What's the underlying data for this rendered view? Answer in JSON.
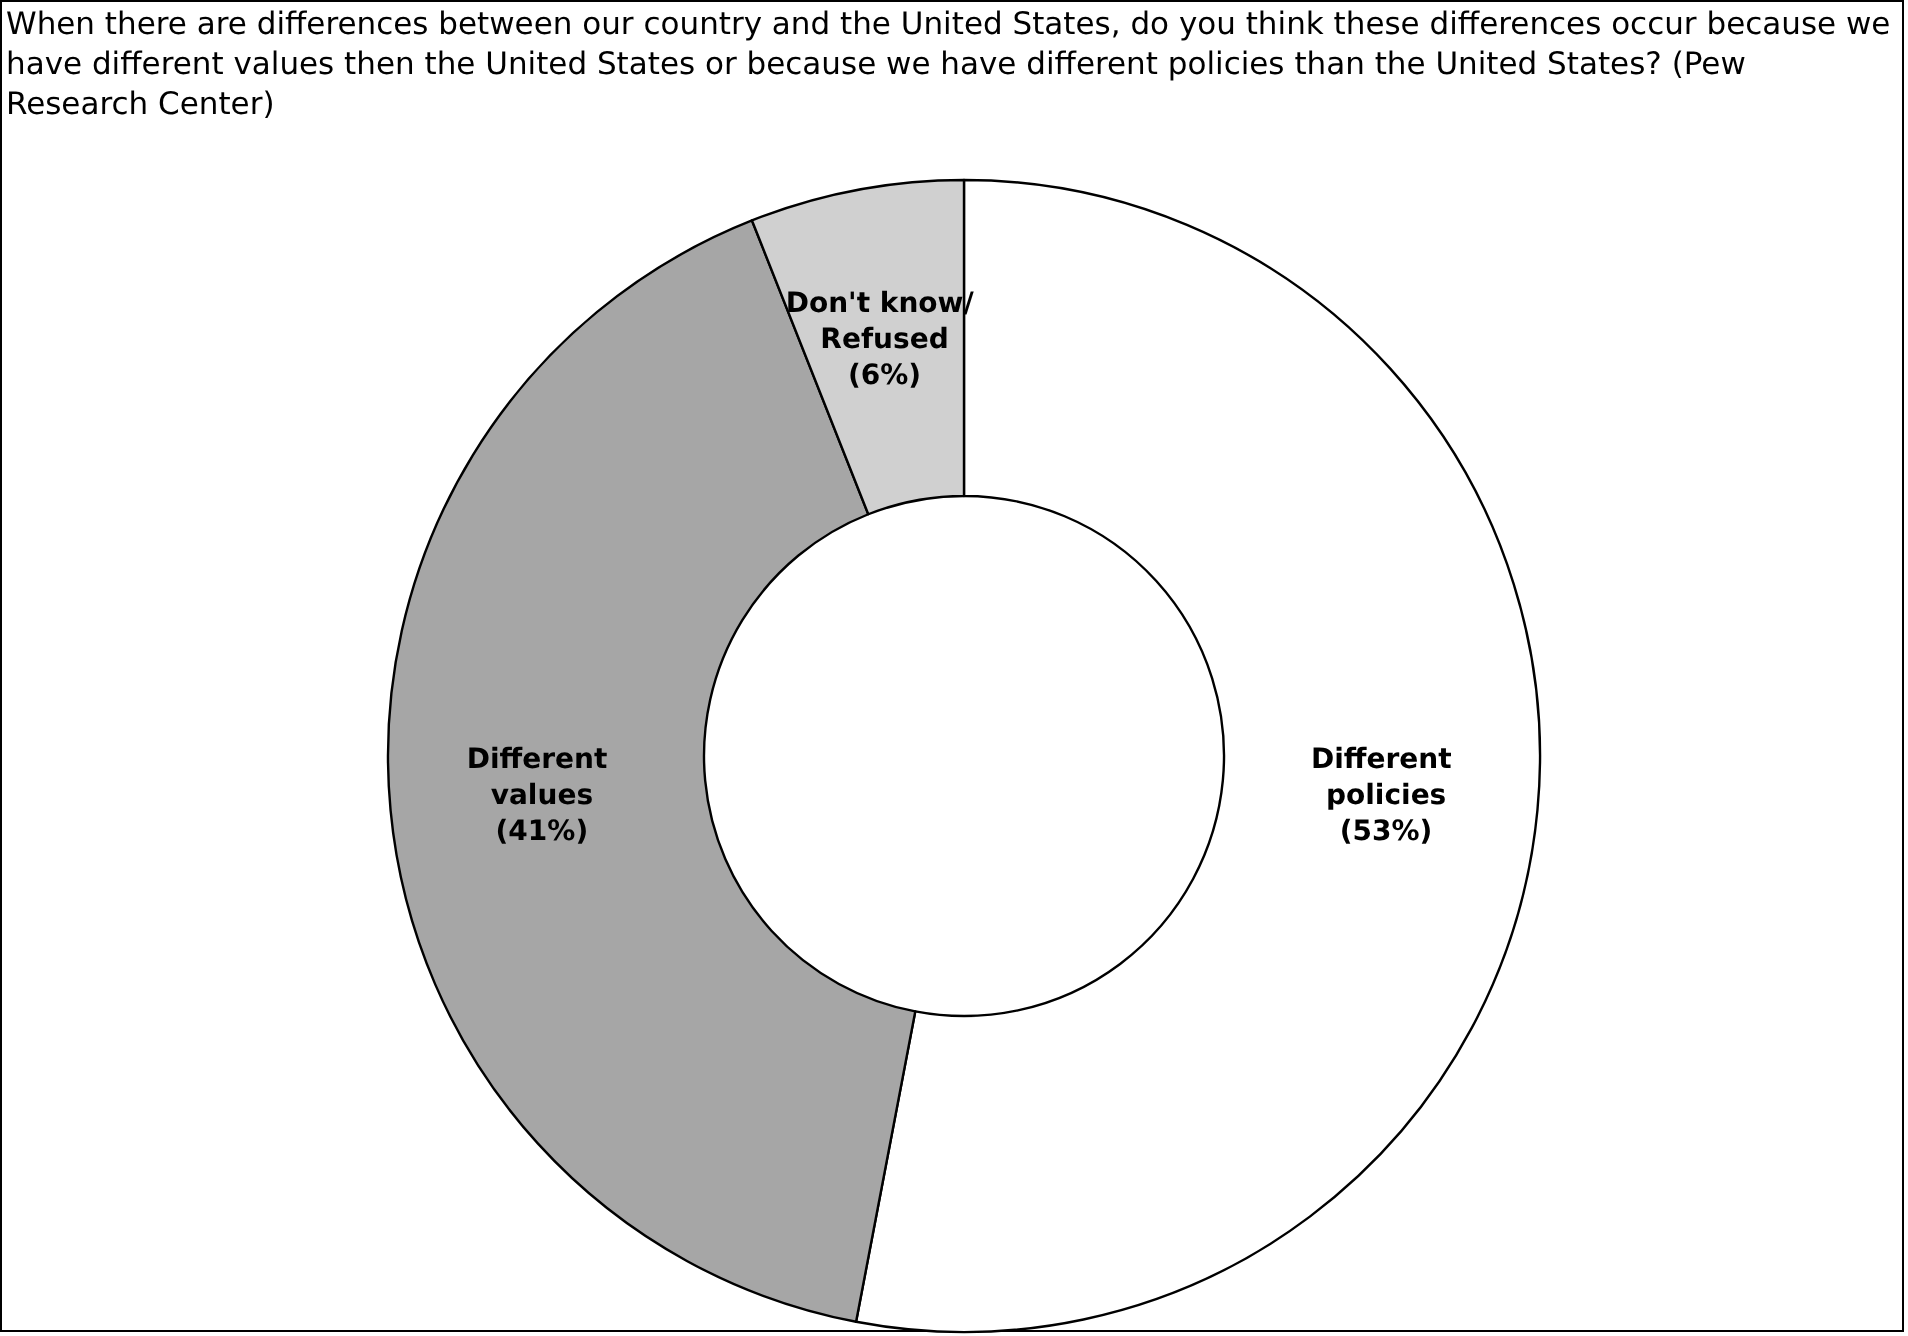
{
  "chart_data": {
    "type": "donut",
    "title": "When there are differences between our country and the United States, do you think these differences occur because we have different values then the United States or because we have different policies than the United States? (Pew Research Center)",
    "categories": [
      "Different policies",
      "Different values",
      "Don't know/ Refused"
    ],
    "values": [
      53,
      41,
      6
    ],
    "value_labels": [
      "(53%)",
      "(41%)",
      "(6%)"
    ],
    "colors": [
      "#ffffff",
      "#a6a6a6",
      "#d0d0d0"
    ],
    "legend": false
  }
}
